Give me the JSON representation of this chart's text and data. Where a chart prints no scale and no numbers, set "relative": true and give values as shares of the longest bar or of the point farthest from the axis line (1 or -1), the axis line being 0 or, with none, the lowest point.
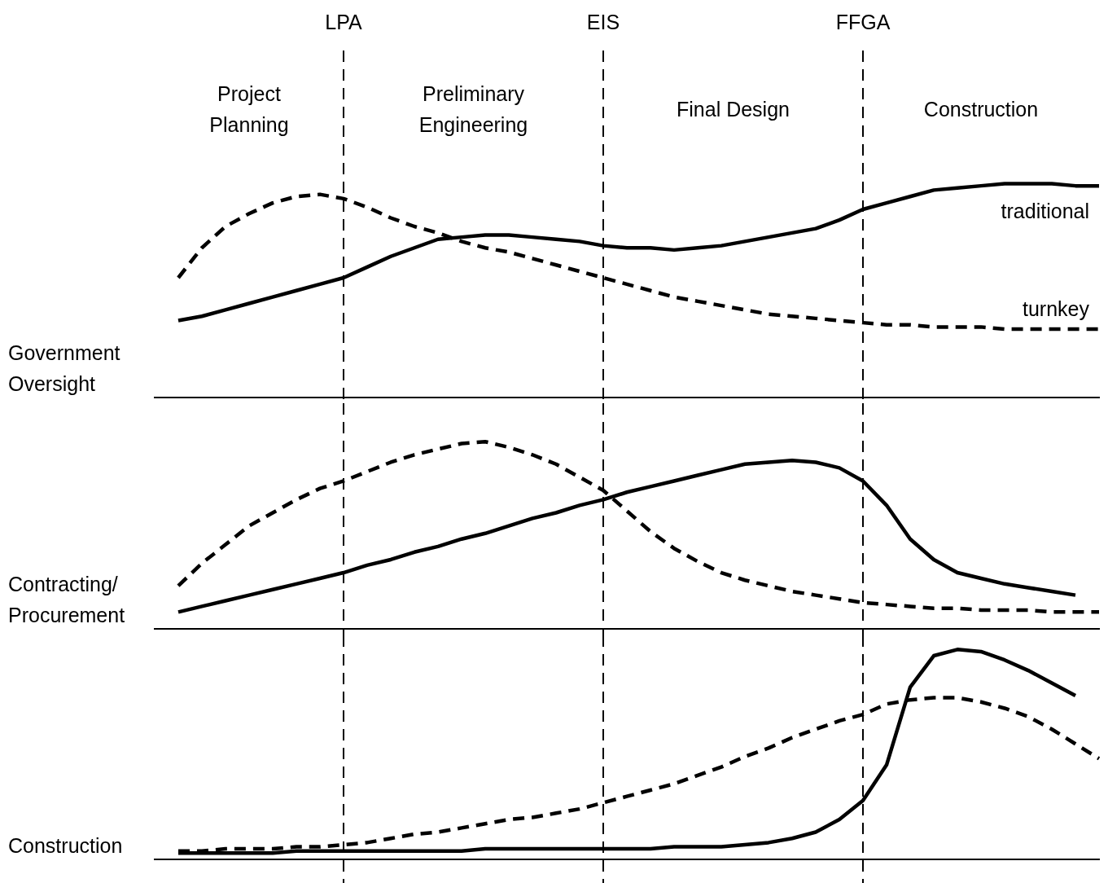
{
  "chart_data": [
    {
      "type": "line",
      "relative": true,
      "ylabel": "Government Oversight",
      "categories": [
        null,
        null,
        null,
        null,
        null,
        null,
        null,
        null,
        "LPA",
        null,
        null,
        null,
        null,
        null,
        null,
        null,
        null,
        null,
        null,
        "EIS",
        null,
        null,
        null,
        null,
        null,
        null,
        null,
        null,
        null,
        null,
        "FFGA",
        null,
        null,
        null,
        null,
        null,
        null,
        null,
        null,
        null,
        null
      ],
      "tick_labels": "x",
      "grid": false,
      "legend": false,
      "marker": "none",
      "annotations": [
        "Project Planning",
        "Preliminary Engineering",
        "Final Design",
        "Construction"
      ],
      "ref_lines": [
        {
          "axis": "x",
          "value": "LPA",
          "line_style": "dashed"
        },
        {
          "axis": "x",
          "value": "EIS",
          "line_style": "dashed"
        },
        {
          "axis": "x",
          "value": "FFGA",
          "line_style": "dashed"
        }
      ],
      "series": [
        {
          "name": "traditional",
          "color": "#000000",
          "line_style": "solid",
          "values": [
            null,
            0.36,
            0.38,
            0.41,
            0.44,
            0.47,
            0.5,
            0.53,
            0.56,
            0.61,
            0.66,
            0.7,
            0.74,
            0.75,
            0.76,
            0.76,
            0.75,
            0.74,
            0.73,
            0.71,
            0.7,
            0.7,
            0.69,
            0.7,
            0.71,
            0.73,
            0.75,
            0.77,
            0.79,
            0.83,
            0.88,
            0.91,
            0.94,
            0.97,
            0.98,
            0.99,
            1,
            1,
            1,
            0.99,
            0.99
          ]
        },
        {
          "name": "turnkey",
          "color": "#000000",
          "line_style": "dashed",
          "values": [
            null,
            0.56,
            0.7,
            0.8,
            0.86,
            0.91,
            0.94,
            0.95,
            0.93,
            0.89,
            0.84,
            0.8,
            0.77,
            0.73,
            0.7,
            0.68,
            0.65,
            0.62,
            0.59,
            0.56,
            0.53,
            0.5,
            0.47,
            0.45,
            0.43,
            0.41,
            0.39,
            0.38,
            0.37,
            0.36,
            0.35,
            0.34,
            0.34,
            0.33,
            0.33,
            0.33,
            0.32,
            0.32,
            0.32,
            0.32,
            0.32
          ]
        }
      ]
    },
    {
      "type": "line",
      "relative": true,
      "ylabel": "Contracting/Procurement",
      "categories": [
        null,
        null,
        null,
        null,
        null,
        null,
        null,
        null,
        "LPA",
        null,
        null,
        null,
        null,
        null,
        null,
        null,
        null,
        null,
        null,
        "EIS",
        null,
        null,
        null,
        null,
        null,
        null,
        null,
        null,
        null,
        null,
        "FFGA",
        null,
        null,
        null,
        null,
        null,
        null,
        null,
        null,
        null,
        null
      ],
      "tick_labels": false,
      "grid": false,
      "legend": false,
      "marker": "none",
      "ref_lines": [
        {
          "axis": "x",
          "value": "LPA",
          "line_style": "dashed"
        },
        {
          "axis": "x",
          "value": "EIS",
          "line_style": "dashed"
        },
        {
          "axis": "x",
          "value": "FFGA",
          "line_style": "dashed"
        }
      ],
      "series": [
        {
          "color": "#000000",
          "line_style": "solid",
          "values": [
            null,
            0.09,
            0.12,
            0.15,
            0.18,
            0.21,
            0.24,
            0.27,
            0.3,
            0.34,
            0.37,
            0.41,
            0.44,
            0.48,
            0.51,
            0.55,
            0.59,
            0.62,
            0.66,
            0.69,
            0.73,
            0.76,
            0.79,
            0.82,
            0.85,
            0.88,
            0.89,
            0.9,
            0.89,
            0.86,
            0.79,
            0.66,
            0.48,
            0.37,
            0.3,
            0.27,
            0.24,
            0.22,
            0.2,
            0.18,
            null
          ]
        },
        {
          "color": "#000000",
          "line_style": "dashed",
          "values": [
            null,
            0.23,
            0.35,
            0.45,
            0.55,
            0.62,
            0.69,
            0.75,
            0.79,
            0.84,
            0.89,
            0.93,
            0.96,
            0.99,
            1,
            0.97,
            0.93,
            0.88,
            0.81,
            0.74,
            0.63,
            0.52,
            0.43,
            0.36,
            0.3,
            0.26,
            0.23,
            0.2,
            0.18,
            0.16,
            0.14,
            0.13,
            0.12,
            0.11,
            0.11,
            0.1,
            0.1,
            0.1,
            0.09,
            0.09,
            0.09
          ]
        }
      ]
    },
    {
      "type": "line",
      "relative": true,
      "ylabel": "Construction",
      "categories": [
        null,
        null,
        null,
        null,
        null,
        null,
        null,
        null,
        "LPA",
        null,
        null,
        null,
        null,
        null,
        null,
        null,
        null,
        null,
        null,
        "EIS",
        null,
        null,
        null,
        null,
        null,
        null,
        null,
        null,
        null,
        null,
        "FFGA",
        null,
        null,
        null,
        null,
        null,
        null,
        null,
        null,
        null,
        null
      ],
      "tick_labels": false,
      "grid": false,
      "legend": false,
      "marker": "none",
      "ref_lines": [
        {
          "axis": "x",
          "value": "LPA",
          "line_style": "dashed"
        },
        {
          "axis": "x",
          "value": "EIS",
          "line_style": "dashed"
        },
        {
          "axis": "x",
          "value": "FFGA",
          "line_style": "dashed"
        }
      ],
      "series": [
        {
          "color": "#000000",
          "line_style": "solid",
          "values": [
            null,
            0.03,
            0.03,
            0.03,
            0.03,
            0.03,
            0.04,
            0.04,
            0.04,
            0.04,
            0.04,
            0.04,
            0.04,
            0.04,
            0.05,
            0.05,
            0.05,
            0.05,
            0.05,
            0.05,
            0.05,
            0.05,
            0.06,
            0.06,
            0.06,
            0.07,
            0.08,
            0.1,
            0.13,
            0.19,
            0.28,
            0.45,
            0.82,
            0.97,
            1,
            0.99,
            0.95,
            0.9,
            0.84,
            0.78,
            null
          ]
        },
        {
          "color": "#000000",
          "line_style": "dashed",
          "values": [
            null,
            0.04,
            0.04,
            0.05,
            0.05,
            0.05,
            0.06,
            0.06,
            0.07,
            0.08,
            0.1,
            0.12,
            0.13,
            0.15,
            0.17,
            0.19,
            0.2,
            0.22,
            0.24,
            0.27,
            0.3,
            0.33,
            0.36,
            0.4,
            0.44,
            0.49,
            0.53,
            0.58,
            0.62,
            0.66,
            0.69,
            0.74,
            0.76,
            0.77,
            0.77,
            0.75,
            0.72,
            0.68,
            0.62,
            0.55,
            0.48
          ]
        }
      ]
    }
  ]
}
